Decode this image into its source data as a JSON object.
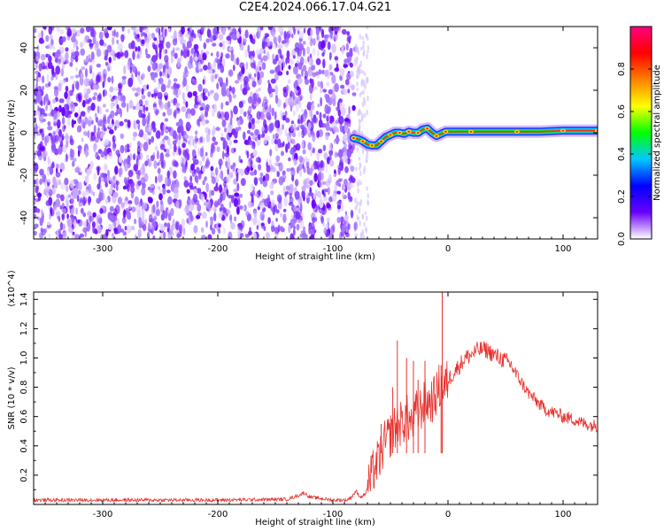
{
  "title": "C2E4.2024.066.17.04.G21",
  "chart_data": [
    {
      "type": "heatmap",
      "xlabel": "Height of straight line (km)",
      "ylabel": "Frequency (Hz)",
      "xlim": [
        -360,
        130
      ],
      "ylim": [
        -50,
        50
      ],
      "x_ticks": [
        -300,
        -200,
        -100,
        0,
        100
      ],
      "y_ticks": [
        -40,
        -20,
        0,
        20,
        40
      ],
      "noise_region_x": [
        -360,
        -80
      ],
      "signal_track": {
        "x": [
          -82,
          -78,
          -74,
          -70,
          -66,
          -62,
          -58,
          -54,
          -50,
          -46,
          -42,
          -38,
          -34,
          -30,
          -26,
          -22,
          -18,
          -14,
          -10,
          -6,
          -2,
          0,
          20,
          40,
          60,
          80,
          100,
          120,
          130
        ],
        "y": [
          -2.5,
          -3,
          -4,
          -5.5,
          -6,
          -6,
          -4,
          -2,
          -1,
          0,
          0,
          -0.5,
          0.5,
          0,
          0,
          1.5,
          2,
          0,
          -1.5,
          -0.5,
          0.5,
          0.5,
          0.5,
          0.5,
          0.5,
          0.5,
          1,
          1,
          1
        ]
      },
      "colorbar": {
        "label": "Normalized spectral amplitude",
        "ticks": [
          0.0,
          0.2,
          0.4,
          0.6,
          0.8
        ],
        "tick_labels": [
          "0.0",
          "0.2",
          "0.4",
          "0.6",
          "0.8"
        ],
        "colors": [
          "#ffffff",
          "#6a00ff",
          "#0000ff",
          "#00c8ff",
          "#00ff00",
          "#ffff00",
          "#ff8000",
          "#ff0000",
          "#ff0080"
        ]
      }
    },
    {
      "type": "line",
      "xlabel": "Height of straight line (km)",
      "ylabel": "SNR (10 * v/v)",
      "ymultiplier": "(x10^4)",
      "xlim": [
        -360,
        130
      ],
      "ylim": [
        0,
        1.45
      ],
      "x_ticks": [
        -300,
        -200,
        -100,
        0,
        100
      ],
      "y_ticks": [
        0.2,
        0.4,
        0.6,
        0.8,
        1.0,
        1.2,
        1.4
      ],
      "y_tick_labels": [
        "0.2",
        "0.4",
        "0.6",
        "0.8",
        "1.0",
        "1.2",
        "1.4"
      ],
      "series": [
        {
          "color": "#e8322e",
          "x": [
            -360,
            -300,
            -200,
            -140,
            -130,
            -125,
            -120,
            -100,
            -88,
            -84,
            -80,
            -76,
            -72,
            -68,
            -64,
            -60,
            -56,
            -52,
            -48,
            -44,
            -40,
            -36,
            -32,
            -28,
            -24,
            -20,
            -16,
            -12,
            -8,
            -4,
            0,
            5,
            10,
            15,
            20,
            25,
            30,
            35,
            40,
            45,
            50,
            55,
            60,
            65,
            70,
            75,
            80,
            85,
            90,
            95,
            100,
            105,
            110,
            115,
            120,
            125,
            130
          ],
          "y": [
            0.03,
            0.03,
            0.03,
            0.035,
            0.06,
            0.08,
            0.05,
            0.03,
            0.03,
            0.05,
            0.09,
            0.05,
            0.07,
            0.15,
            0.25,
            0.3,
            0.4,
            0.45,
            0.5,
            0.55,
            0.55,
            0.6,
            0.55,
            0.62,
            0.65,
            0.7,
            0.7,
            0.72,
            0.8,
            0.78,
            0.85,
            0.9,
            0.95,
            1.0,
            1.02,
            1.05,
            1.06,
            1.05,
            1.02,
            1.0,
            0.98,
            0.95,
            0.88,
            0.82,
            0.76,
            0.72,
            0.68,
            0.65,
            0.63,
            0.62,
            0.6,
            0.59,
            0.58,
            0.56,
            0.55,
            0.54,
            0.54
          ]
        }
      ],
      "spikes": [
        {
          "x": -58,
          "y": 0.55
        },
        {
          "x": -48,
          "y": 0.8
        },
        {
          "x": -44,
          "y": 1.12
        },
        {
          "x": -36,
          "y": 1.0
        },
        {
          "x": -30,
          "y": 0.98
        },
        {
          "x": -26,
          "y": 0.85
        },
        {
          "x": -20,
          "y": 0.98
        },
        {
          "x": -6,
          "y": 0.95
        },
        {
          "x": -5,
          "y": 1.45
        }
      ]
    }
  ]
}
